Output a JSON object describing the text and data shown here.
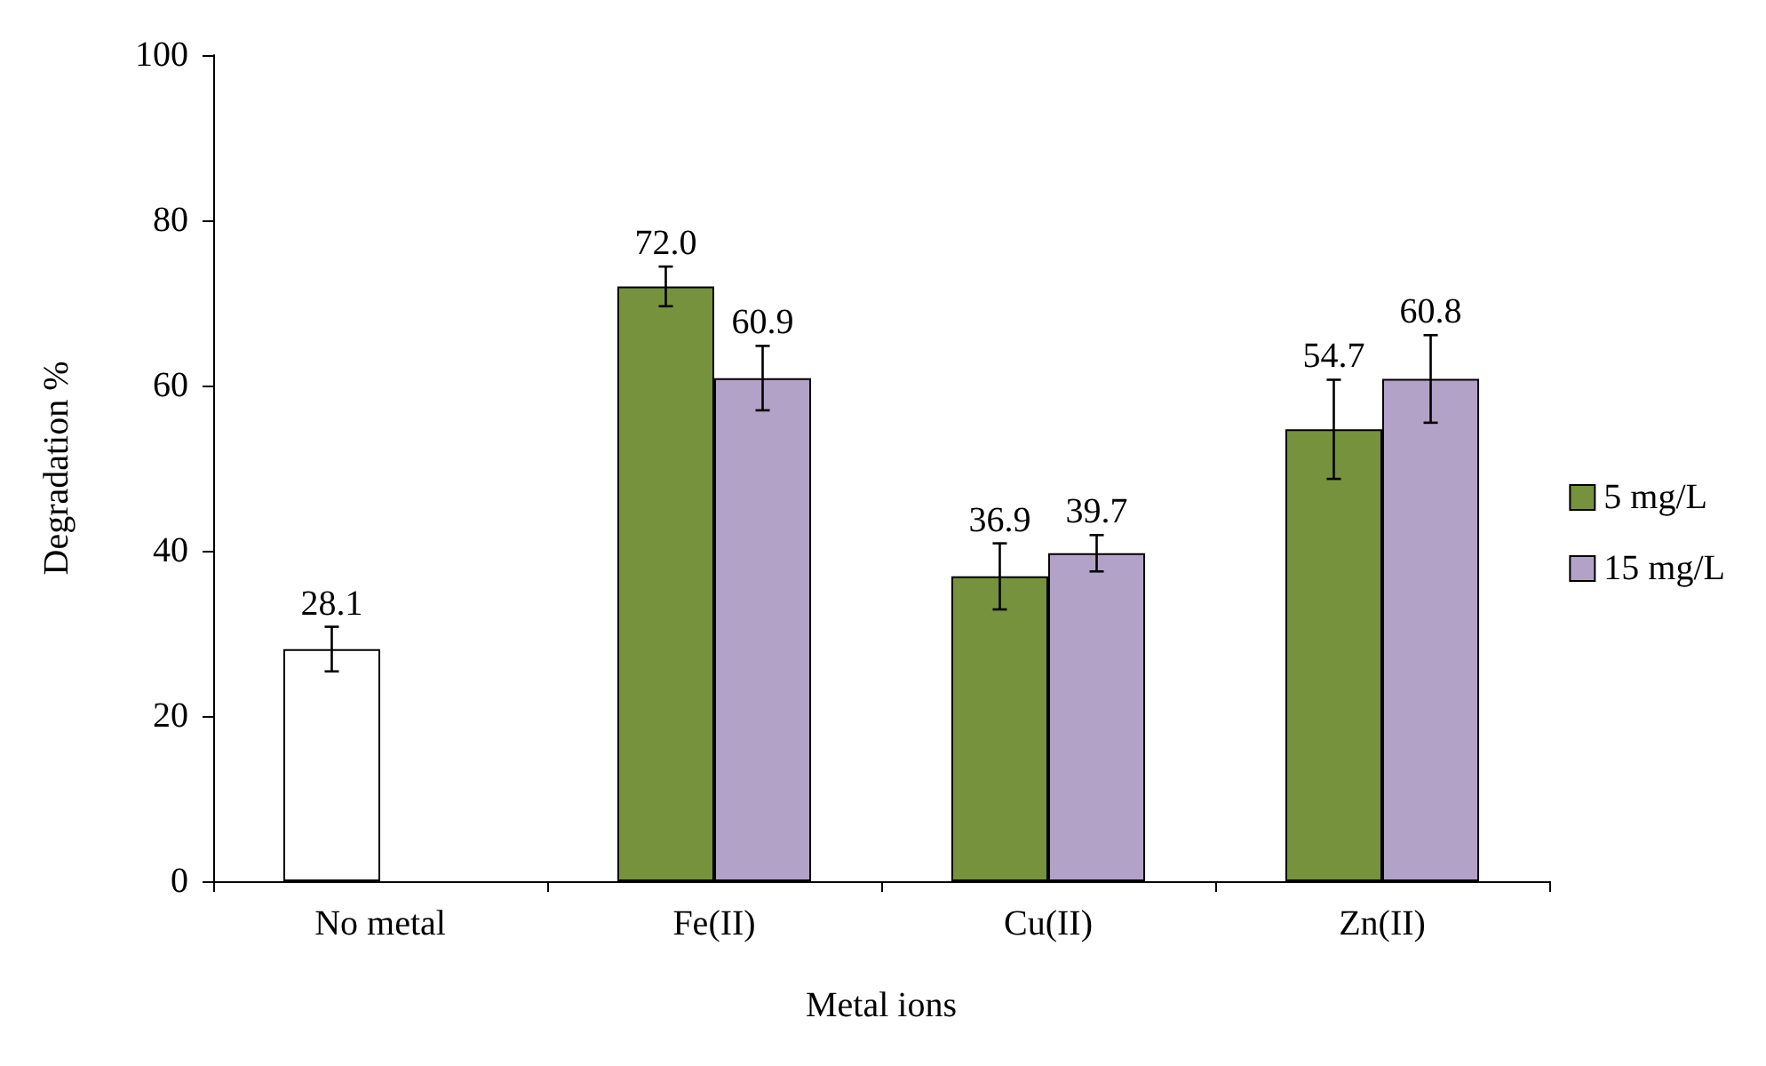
{
  "chart_data": {
    "type": "bar",
    "xlabel": "Metal ions",
    "ylabel": "Degradation %",
    "categories": [
      "No metal",
      "Fe(II)",
      "Cu(II)",
      "Zn(II)"
    ],
    "series": [
      {
        "name": "5 mg/L",
        "color": "#76923c",
        "colors": [
          "#ffffff",
          "#76923c",
          "#76923c",
          "#76923c"
        ],
        "values": [
          28.1,
          72.0,
          36.9,
          54.7
        ],
        "errors": [
          2.7,
          2.4,
          4.0,
          6.0
        ],
        "value_labels": [
          "28.1",
          "72.0",
          "36.9",
          "54.7"
        ]
      },
      {
        "name": "15 mg/L",
        "color": "#b3a2c7",
        "values": [
          null,
          60.9,
          39.7,
          60.8
        ],
        "errors": [
          null,
          3.9,
          2.2,
          5.3
        ],
        "value_labels": [
          null,
          "60.9",
          "39.7",
          "60.8"
        ]
      }
    ],
    "ylim": [
      0,
      100
    ],
    "yticks": [
      0,
      20,
      40,
      60,
      80,
      100
    ],
    "grid": false,
    "legend": "right"
  }
}
